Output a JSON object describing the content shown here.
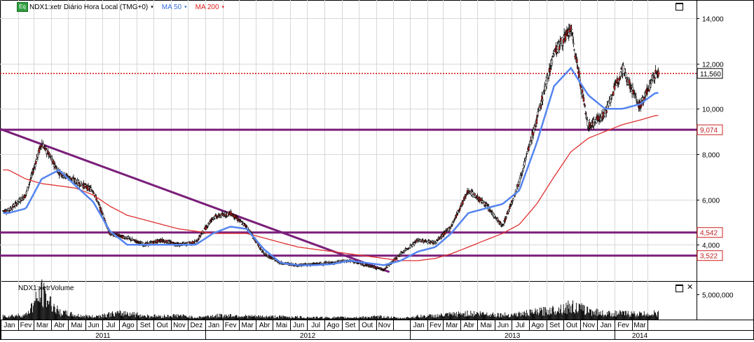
{
  "header": {
    "badge": "Eq",
    "symbol_text": "NDX1:xetr Diário Hora Local (TMG+0)",
    "ma50_label": "MA 50",
    "ma200_label": "MA 200",
    "dropdown_caret": "▾"
  },
  "volume_panel": {
    "title": "NDX1:xetrVolume",
    "close_glyph": "✕"
  },
  "colors": {
    "candles": "#000000",
    "candle_red": "#c02020",
    "ma50": "#5585f0",
    "ma200": "#e03030",
    "trendline": "#7a1f7a",
    "last_price_line": "#d01010",
    "grid": "#d8d8d8"
  },
  "chart_data": [
    {
      "type": "line",
      "subtype": "candlestick",
      "title": "",
      "xlabel": "",
      "ylabel": "",
      "y_axis_side": "right",
      "ylim": [
        2400,
        14800
      ],
      "y_ticks": [
        4000,
        6000,
        8000,
        10000,
        12000,
        14000
      ],
      "y_tick_labels": [
        "4,000",
        "6,000",
        "8,000",
        "10,000",
        "12,000",
        "14,000"
      ],
      "grid": true,
      "x_range": [
        "2011-01-01",
        "2014-04-01"
      ],
      "x_month_labels": [
        "Jan",
        "Fev",
        "Mar",
        "Abr",
        "Mai",
        "Jun",
        "Jul",
        "Ago",
        "Set",
        "Out",
        "Nov",
        "Dez",
        "Jan",
        "Fev",
        "Mar",
        "Abr",
        "Mai",
        "Jun",
        "Jul",
        "Ago",
        "Set",
        "Out",
        "Nov",
        "Jan",
        "Fev",
        "Mar",
        "Abr",
        "Mai",
        "Jun",
        "Jul",
        "Ago",
        "Set",
        "Out",
        "Nov",
        "Jan",
        "Fev",
        "Mar"
      ],
      "x_year_labels": [
        "2011",
        "2012",
        "2013",
        "2014"
      ],
      "price_labels": [
        {
          "value": 11560,
          "text": "11,560",
          "style": "last"
        },
        {
          "value": 9074,
          "text": "9,074",
          "style": "level"
        },
        {
          "value": 4542,
          "text": "4,542",
          "style": "level"
        },
        {
          "value": 3522,
          "text": "3,522",
          "style": "level"
        }
      ],
      "horizontal_levels": [
        9074,
        4542,
        3522
      ],
      "last_price": 11560,
      "trendline": {
        "start": [
          "2011-01-01",
          9100
        ],
        "end": [
          "2012-11-25",
          2800
        ]
      },
      "series": [
        {
          "name": "NDX1:xetr",
          "dates": [
            "2011-01",
            "2011-02",
            "2011-03",
            "2011-04",
            "2011-05",
            "2011-06",
            "2011-07",
            "2011-08",
            "2011-09",
            "2011-10",
            "2011-11",
            "2011-12",
            "2012-01",
            "2012-02",
            "2012-03",
            "2012-04",
            "2012-05",
            "2012-06",
            "2012-07",
            "2012-08",
            "2012-09",
            "2012-10",
            "2012-11",
            "2012-12",
            "2013-01",
            "2013-02",
            "2013-03",
            "2013-04",
            "2013-05",
            "2013-06",
            "2013-07",
            "2013-08",
            "2013-09",
            "2013-10",
            "2013-11",
            "2013-12",
            "2014-01",
            "2014-02",
            "2014-03"
          ],
          "values": [
            5500,
            6200,
            8500,
            7200,
            6800,
            6400,
            4500,
            4300,
            4000,
            4200,
            4000,
            4100,
            5200,
            5400,
            4800,
            3600,
            3200,
            3100,
            3150,
            3200,
            3300,
            3100,
            2900,
            3600,
            4200,
            4100,
            4800,
            6400,
            5800,
            4800,
            6800,
            9500,
            12500,
            13500,
            9200,
            9800,
            11800,
            10100,
            11560
          ]
        },
        {
          "name": "MA 50",
          "dates": [
            "2011-01",
            "2011-02",
            "2011-03",
            "2011-04",
            "2011-05",
            "2011-06",
            "2011-07",
            "2011-08",
            "2011-09",
            "2011-10",
            "2011-11",
            "2011-12",
            "2012-01",
            "2012-02",
            "2012-03",
            "2012-04",
            "2012-05",
            "2012-06",
            "2012-07",
            "2012-08",
            "2012-09",
            "2012-10",
            "2012-11",
            "2012-12",
            "2013-01",
            "2013-02",
            "2013-03",
            "2013-04",
            "2013-05",
            "2013-06",
            "2013-07",
            "2013-08",
            "2013-09",
            "2013-10",
            "2013-11",
            "2013-12",
            "2014-01",
            "2014-02",
            "2014-03"
          ],
          "values": [
            5400,
            5600,
            6900,
            7300,
            6600,
            5900,
            4600,
            4000,
            4000,
            4000,
            4000,
            4000,
            4500,
            4800,
            4700,
            3800,
            3200,
            3100,
            3100,
            3150,
            3300,
            3200,
            3100,
            3300,
            3700,
            3900,
            4500,
            5400,
            5600,
            5800,
            6400,
            8500,
            11000,
            11800,
            10600,
            10000,
            10000,
            10200,
            10700
          ]
        },
        {
          "name": "MA 200",
          "dates": [
            "2011-01",
            "2011-02",
            "2011-03",
            "2011-04",
            "2011-05",
            "2011-06",
            "2011-07",
            "2011-08",
            "2011-09",
            "2011-10",
            "2011-11",
            "2011-12",
            "2012-01",
            "2012-02",
            "2012-03",
            "2012-04",
            "2012-05",
            "2012-06",
            "2012-07",
            "2012-08",
            "2012-09",
            "2012-10",
            "2012-11",
            "2012-12",
            "2013-01",
            "2013-02",
            "2013-03",
            "2013-04",
            "2013-05",
            "2013-06",
            "2013-07",
            "2013-08",
            "2013-09",
            "2013-10",
            "2013-11",
            "2013-12",
            "2014-01",
            "2014-02",
            "2014-03"
          ],
          "values": [
            7300,
            6900,
            6700,
            6600,
            6500,
            6200,
            5700,
            5300,
            5100,
            4900,
            4700,
            4600,
            4500,
            4500,
            4500,
            4300,
            4100,
            3900,
            3800,
            3700,
            3600,
            3500,
            3400,
            3300,
            3300,
            3400,
            3600,
            3900,
            4200,
            4500,
            4900,
            5800,
            7000,
            8100,
            8700,
            9000,
            9300,
            9500,
            9700
          ]
        }
      ]
    },
    {
      "type": "bar",
      "title": "NDX1:xetrVolume",
      "y_ticks": [
        5000000
      ],
      "y_tick_labels": [
        "5,000,000"
      ],
      "ylim": [
        0,
        7000000
      ],
      "dates": [
        "2011-01",
        "2011-02",
        "2011-03",
        "2011-04",
        "2011-05",
        "2011-06",
        "2011-07",
        "2011-08",
        "2011-09",
        "2011-10",
        "2011-11",
        "2011-12",
        "2012-01",
        "2012-02",
        "2012-03",
        "2012-04",
        "2012-05",
        "2012-06",
        "2012-07",
        "2012-08",
        "2012-09",
        "2012-10",
        "2012-11",
        "2012-12",
        "2013-01",
        "2013-02",
        "2013-03",
        "2013-04",
        "2013-05",
        "2013-06",
        "2013-07",
        "2013-08",
        "2013-09",
        "2013-10",
        "2013-11",
        "2013-12",
        "2014-01",
        "2014-02",
        "2014-03"
      ],
      "values": [
        900000,
        1100000,
        6500000,
        1800000,
        1000000,
        700000,
        1300000,
        1600000,
        900000,
        800000,
        1000000,
        500000,
        900000,
        1000000,
        800000,
        700000,
        700000,
        600000,
        500000,
        500000,
        500000,
        600000,
        700000,
        300000,
        800000,
        900000,
        1200000,
        1500000,
        1400000,
        1100000,
        1300000,
        1800000,
        2400000,
        3200000,
        2200000,
        1400000,
        1500000,
        1300000,
        1500000
      ]
    }
  ]
}
